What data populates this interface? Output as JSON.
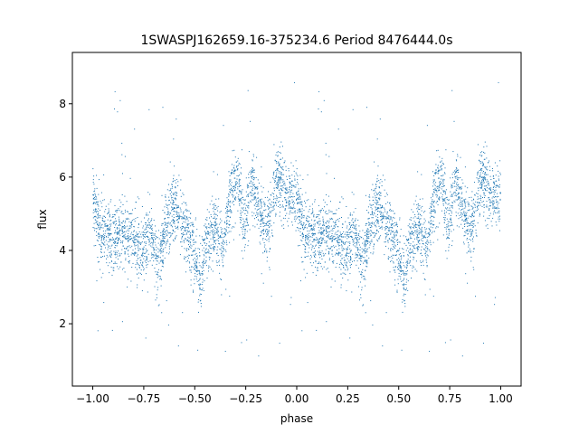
{
  "chart_data": {
    "type": "scatter",
    "title": "1SWASPJ162659.16-375234.6 Period 8476444.0s",
    "xlabel": "phase",
    "ylabel": "flux",
    "xlim": [
      -1.1,
      1.1
    ],
    "ylim": [
      0.3,
      9.4
    ],
    "grid": false,
    "xticks": [
      -1.0,
      -0.75,
      -0.5,
      -0.25,
      0.0,
      0.25,
      0.5,
      0.75,
      1.0
    ],
    "xtick_labels": [
      "−1.00",
      "−0.75",
      "−0.50",
      "−0.25",
      "0.00",
      "0.25",
      "0.50",
      "0.75",
      "1.00"
    ],
    "yticks": [
      2,
      4,
      6,
      8
    ],
    "ytick_labels": [
      "2",
      "4",
      "6",
      "8"
    ],
    "series": [
      {
        "color": "#1f77b4",
        "marker_size": 1,
        "profile_phase": [
          -1.0,
          -0.97,
          -0.93,
          -0.9,
          -0.86,
          -0.8,
          -0.76,
          -0.72,
          -0.68,
          -0.64,
          -0.6,
          -0.55,
          -0.5,
          -0.47,
          -0.44,
          -0.4,
          -0.36,
          -0.32,
          -0.29,
          -0.26,
          -0.22,
          -0.18,
          -0.14,
          -0.1,
          -0.06,
          -0.02,
          0.0
        ],
        "profile_flux": [
          5.5,
          4.6,
          4.4,
          4.2,
          4.5,
          4.3,
          3.8,
          4.5,
          3.5,
          4.6,
          5.2,
          4.6,
          3.9,
          3.2,
          4.3,
          4.6,
          4.2,
          5.6,
          6.1,
          4.6,
          5.9,
          5.0,
          4.5,
          6.0,
          5.7,
          5.4,
          5.5
        ],
        "flux_scatter": 0.45
      }
    ]
  }
}
